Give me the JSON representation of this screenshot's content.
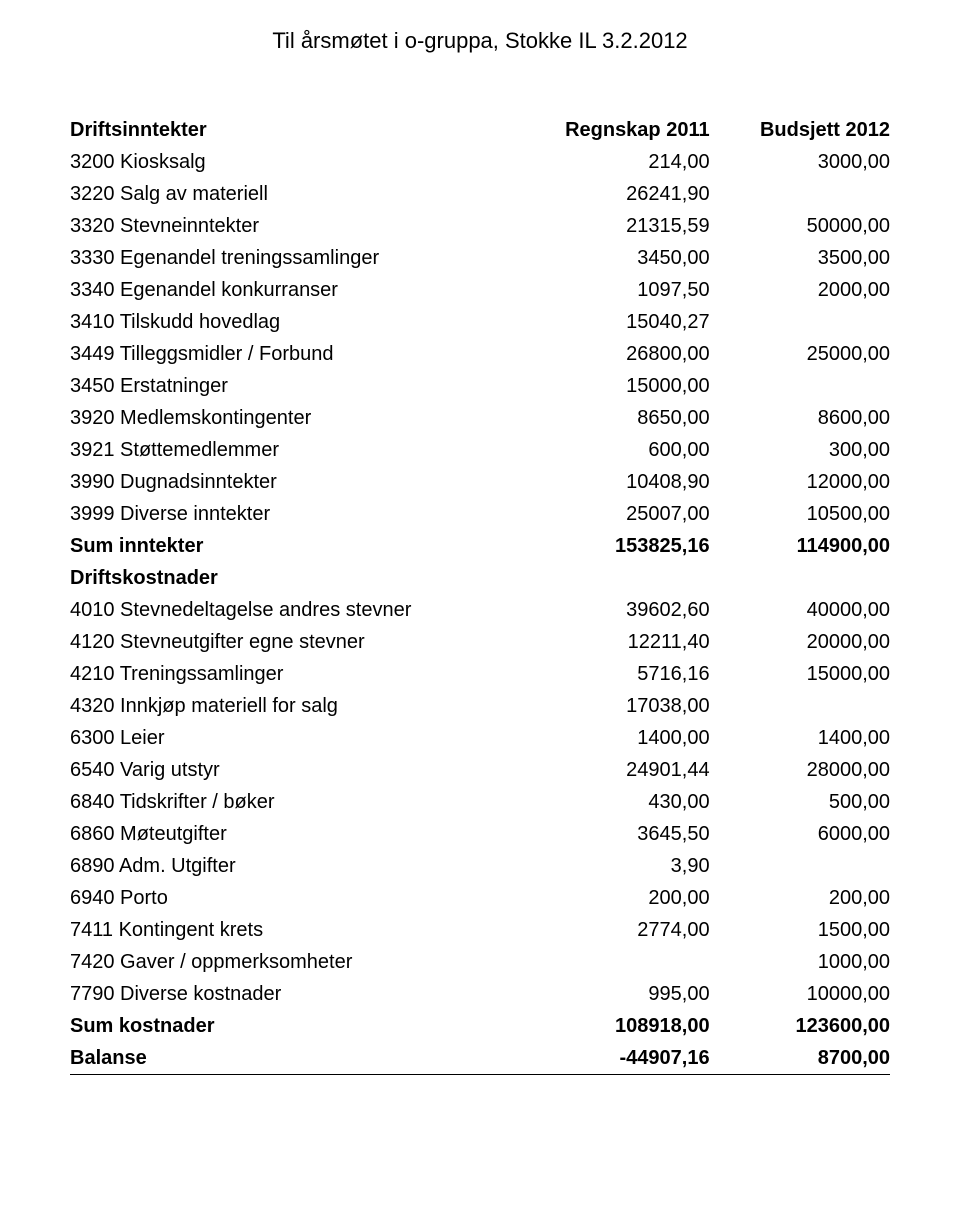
{
  "header": "Til årsmøtet i o-gruppa, Stokke IL  3.2.2012",
  "columns": {
    "c1": "Regnskap 2011",
    "c2": "Budsjett 2012"
  },
  "sections": {
    "driftsinntekter": "Driftsinntekter",
    "driftskostnader": "Driftskostnader"
  },
  "rows": [
    {
      "label": "3200 Kiosksalg",
      "v1": "214,00",
      "v2": "3000,00"
    },
    {
      "label": "3220 Salg av materiell",
      "v1": "26241,90",
      "v2": ""
    },
    {
      "label": "3320 Stevneinntekter",
      "v1": "21315,59",
      "v2": "50000,00"
    },
    {
      "label": "3330 Egenandel treningssamlinger",
      "v1": "3450,00",
      "v2": "3500,00"
    },
    {
      "label": "3340 Egenandel konkurranser",
      "v1": "1097,50",
      "v2": "2000,00"
    },
    {
      "label": "3410 Tilskudd hovedlag",
      "v1": "15040,27",
      "v2": ""
    },
    {
      "label": "3449 Tilleggsmidler / Forbund",
      "v1": "26800,00",
      "v2": "25000,00"
    },
    {
      "label": "3450 Erstatninger",
      "v1": "15000,00",
      "v2": ""
    },
    {
      "label": "3920 Medlemskontingenter",
      "v1": "8650,00",
      "v2": "8600,00"
    },
    {
      "label": "3921 Støttemedlemmer",
      "v1": "600,00",
      "v2": "300,00"
    },
    {
      "label": "3990 Dugnadsinntekter",
      "v1": "10408,90",
      "v2": "12000,00"
    },
    {
      "label": "3999 Diverse inntekter",
      "v1": "25007,00",
      "v2": "10500,00"
    }
  ],
  "sum_inntekter": {
    "label": "Sum inntekter",
    "v1": "153825,16",
    "v2": "114900,00"
  },
  "rows2": [
    {
      "label": "4010 Stevnedeltagelse andres stevner",
      "v1": "39602,60",
      "v2": "40000,00"
    },
    {
      "label": "4120 Stevneutgifter egne stevner",
      "v1": "12211,40",
      "v2": "20000,00"
    },
    {
      "label": "4210 Treningssamlinger",
      "v1": "5716,16",
      "v2": "15000,00"
    },
    {
      "label": "4320 Innkjøp materiell for salg",
      "v1": "17038,00",
      "v2": ""
    },
    {
      "label": "6300 Leier",
      "v1": "1400,00",
      "v2": "1400,00"
    },
    {
      "label": "6540 Varig utstyr",
      "v1": "24901,44",
      "v2": "28000,00"
    },
    {
      "label": "6840 Tidskrifter / bøker",
      "v1": "430,00",
      "v2": "500,00"
    },
    {
      "label": "6860 Møteutgifter",
      "v1": "3645,50",
      "v2": "6000,00"
    },
    {
      "label": "6890 Adm. Utgifter",
      "v1": "3,90",
      "v2": ""
    },
    {
      "label": "6940 Porto",
      "v1": "200,00",
      "v2": "200,00"
    },
    {
      "label": "7411 Kontingent krets",
      "v1": "2774,00",
      "v2": "1500,00"
    },
    {
      "label": "7420 Gaver / oppmerksomheter",
      "v1": "",
      "v2": "1000,00"
    },
    {
      "label": "7790 Diverse kostnader",
      "v1": "995,00",
      "v2": "10000,00"
    }
  ],
  "sum_kostnader": {
    "label": "Sum kostnader",
    "v1": "108918,00",
    "v2": "123600,00"
  },
  "balanse": {
    "label": "Balanse",
    "v1": "-44907,16",
    "v2": "8700,00"
  }
}
